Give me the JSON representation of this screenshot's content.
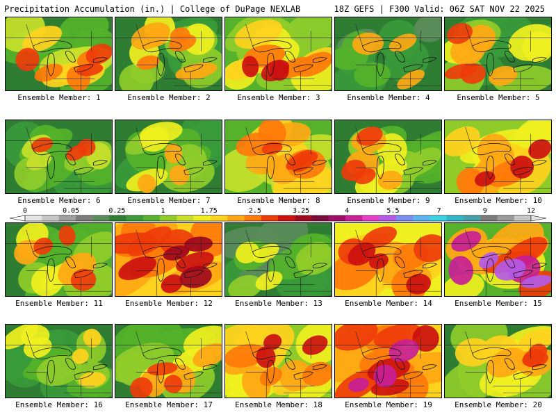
{
  "header": {
    "left_title": "Precipitation Accumulation (in.) | College of DuPage NEXLAB",
    "right_title": "18Z GEFS | F300 Valid: 06Z SAT NOV 22 2025"
  },
  "legend": {
    "tick_labels": [
      "0",
      "0.05",
      "0.25",
      "1",
      "1.75",
      "2.5",
      "3.25",
      "4",
      "5.5",
      "7",
      "9",
      "12"
    ],
    "colors": [
      "#e6e6e6",
      "#c8c8c8",
      "#a0a0a0",
      "#7c7c7c",
      "#5a8c5a",
      "#2e7d32",
      "#3a9a3a",
      "#55b22a",
      "#8fcc2a",
      "#c8e02a",
      "#f0f020",
      "#ffd21e",
      "#ffa814",
      "#ff7a0a",
      "#ee3c0a",
      "#cc1010",
      "#a0081e",
      "#7a0a3a",
      "#a0106a",
      "#c81e96",
      "#e640c8",
      "#b45ae6",
      "#7a8cf0",
      "#5ab4f0",
      "#3cd2e6",
      "#32b4c8",
      "#46a0aa",
      "#7a7a7a",
      "#9a9a9a",
      "#c8c8c8"
    ]
  },
  "panels": [
    {
      "label": "Ensemble Member: 1",
      "palette": [
        "#2e7d32",
        "#55b22a",
        "#c8e02a",
        "#ffd21e",
        "#ff7a0a",
        "#ee3c0a"
      ]
    },
    {
      "label": "Ensemble Member: 2",
      "palette": [
        "#2e7d32",
        "#3a9a3a",
        "#8fcc2a",
        "#f0f020",
        "#ffa814",
        "#ff7a0a"
      ]
    },
    {
      "label": "Ensemble Member: 3",
      "palette": [
        "#55b22a",
        "#8fcc2a",
        "#f0f020",
        "#ffd21e",
        "#ff7a0a",
        "#cc1010"
      ]
    },
    {
      "label": "Ensemble Member: 4",
      "palette": [
        "#2e7d32",
        "#2e7d32",
        "#3a9a3a",
        "#5a8c5a",
        "#55b22a",
        "#ffa814"
      ]
    },
    {
      "label": "Ensemble Member: 5",
      "palette": [
        "#2e7d32",
        "#3a9a3a",
        "#8fcc2a",
        "#f0f020",
        "#ffa814",
        "#ee3c0a"
      ]
    },
    {
      "label": "Ensemble Member: 6",
      "palette": [
        "#2e7d32",
        "#3a9a3a",
        "#55b22a",
        "#8fcc2a",
        "#c8e02a",
        "#ee3c0a"
      ]
    },
    {
      "label": "Ensemble Member: 7",
      "palette": [
        "#2e7d32",
        "#3a9a3a",
        "#55b22a",
        "#8fcc2a",
        "#f0f020",
        "#ffa814"
      ]
    },
    {
      "label": "Ensemble Member: 8",
      "palette": [
        "#55b22a",
        "#c8e02a",
        "#ffd21e",
        "#ffa814",
        "#ff7a0a",
        "#ee3c0a"
      ]
    },
    {
      "label": "Ensemble Member: 9",
      "palette": [
        "#2e7d32",
        "#55b22a",
        "#8fcc2a",
        "#f0f020",
        "#ffa814",
        "#ee3c0a"
      ]
    },
    {
      "label": "Ensemble Member: 10",
      "palette": [
        "#8fcc2a",
        "#f0f020",
        "#ffd21e",
        "#ffa814",
        "#ff7a0a",
        "#cc1010"
      ]
    },
    {
      "label": "Ensemble Member: 11",
      "palette": [
        "#2e7d32",
        "#55b22a",
        "#8fcc2a",
        "#f0f020",
        "#ffa814",
        "#ee3c0a"
      ]
    },
    {
      "label": "Ensemble Member: 12",
      "palette": [
        "#ffd21e",
        "#ffa814",
        "#ff7a0a",
        "#ee3c0a",
        "#cc1010",
        "#a0081e"
      ]
    },
    {
      "label": "Ensemble Member: 13",
      "palette": [
        "#2e7d32",
        "#3a9a3a",
        "#5a8c5a",
        "#55b22a",
        "#8fcc2a",
        "#f0f020"
      ]
    },
    {
      "label": "Ensemble Member: 14",
      "palette": [
        "#f0f020",
        "#ffd21e",
        "#ffa814",
        "#ff7a0a",
        "#ee3c0a",
        "#cc1010"
      ]
    },
    {
      "label": "Ensemble Member: 15",
      "palette": [
        "#55b22a",
        "#f0f020",
        "#ffa814",
        "#ee3c0a",
        "#c81e96",
        "#b45ae6"
      ]
    },
    {
      "label": "Ensemble Member: 16",
      "palette": [
        "#2e7d32",
        "#3a9a3a",
        "#55b22a",
        "#8fcc2a",
        "#f0f020",
        "#ffd21e"
      ]
    },
    {
      "label": "Ensemble Member: 17",
      "palette": [
        "#2e7d32",
        "#55b22a",
        "#8fcc2a",
        "#f0f020",
        "#ffa814",
        "#ee3c0a"
      ]
    },
    {
      "label": "Ensemble Member: 18",
      "palette": [
        "#8fcc2a",
        "#f0f020",
        "#ffd21e",
        "#ffa814",
        "#ff7a0a",
        "#cc1010"
      ]
    },
    {
      "label": "Ensemble Member: 19",
      "palette": [
        "#ffd21e",
        "#ffa814",
        "#ff7a0a",
        "#ee3c0a",
        "#cc1010",
        "#c81e96"
      ]
    },
    {
      "label": "Ensemble Member: 20",
      "palette": [
        "#2e7d32",
        "#8fcc2a",
        "#f0f020",
        "#ffd21e",
        "#ffa814",
        "#ee3c0a"
      ]
    }
  ]
}
